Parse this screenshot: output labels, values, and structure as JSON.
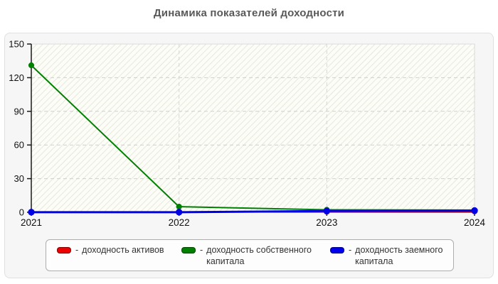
{
  "title": "Динамика показателей доходности",
  "chart_data": {
    "type": "line",
    "title": "Динамика показателей доходности",
    "x": [
      2021,
      2022,
      2023,
      2024
    ],
    "x_labels": [
      "2021",
      "2022",
      "2023",
      "2024"
    ],
    "series": [
      {
        "name": "доходность активов",
        "color": "#e60000",
        "marker": "circle",
        "line_width": 2,
        "values": [
          0.2,
          0.3,
          0.5,
          0.8
        ]
      },
      {
        "name": "доходность собственного капитала",
        "color": "#008000",
        "marker": "circle",
        "line_width": 2,
        "values": [
          131,
          5,
          2.2,
          1.9
        ]
      },
      {
        "name": "доходность заемного капитала",
        "color": "#0000e6",
        "marker": "circle",
        "line_width": 3,
        "values": [
          0.1,
          0.1,
          1.1,
          1.5
        ]
      }
    ],
    "xlabel": "",
    "ylabel": "",
    "ylim": [
      0,
      150
    ],
    "yticks": [
      0,
      30,
      60,
      90,
      120,
      150
    ],
    "ytick_labels": [
      "0",
      "30",
      "60",
      "90",
      "120",
      "150"
    ],
    "grid": true,
    "grid_style": "dashed",
    "legend_position": "bottom"
  },
  "legend": {
    "separator": "-",
    "items": [
      {
        "swatch_color": "#ee0000",
        "lines": [
          "доходность активов",
          ""
        ]
      },
      {
        "swatch_color": "#008000",
        "lines": [
          "доходность собственного",
          "капитала"
        ]
      },
      {
        "swatch_color": "#0000ee",
        "lines": [
          "доходность заемного",
          "капитала"
        ]
      }
    ]
  },
  "colors": {
    "panel_background": "#f6f6f6",
    "plot_background": "#fdfdf7",
    "hatch_line": "#e7e7de",
    "gridline": "#cfcfcf",
    "axis": "#1a1a1a",
    "title_text": "#595959",
    "tick_text": "#111111"
  }
}
